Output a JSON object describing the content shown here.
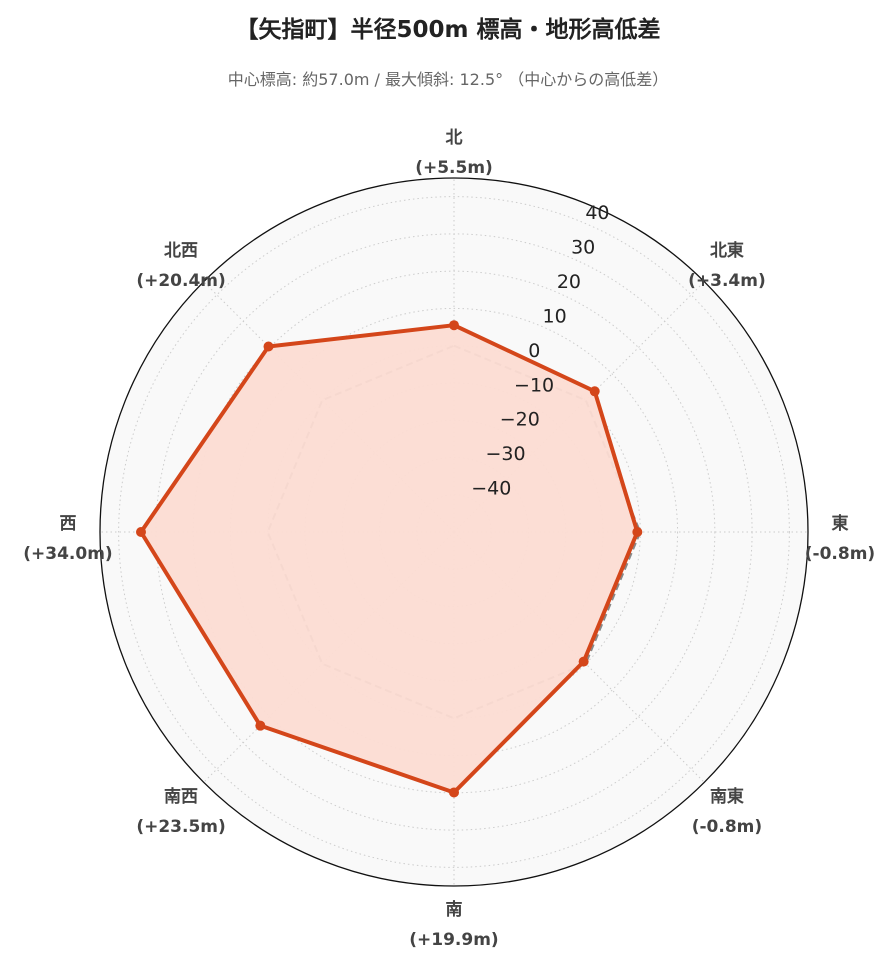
{
  "title": "【矢指町】半径500m 標高・地形高低差",
  "subtitle": "中心標高: 約57.0m / 最大傾斜: 12.5° （中心からの高低差）",
  "chart_data": {
    "type": "radar",
    "categories": [
      "北",
      "北東",
      "東",
      "南東",
      "南",
      "南西",
      "西",
      "北西"
    ],
    "category_values": [
      "(+5.5m)",
      "(+3.4m)",
      "(-0.8m)",
      "(-0.8m)",
      "(+19.9m)",
      "(+23.5m)",
      "(+34.0m)",
      "(+20.4m)"
    ],
    "series": [
      {
        "values": [
          5.5,
          3.4,
          -0.8,
          -0.8,
          19.9,
          23.5,
          34.0,
          20.4
        ],
        "color": "#d4461a",
        "fill": "#fcdcd3"
      },
      {
        "values": [
          0,
          0,
          0,
          0,
          0,
          0,
          0,
          0
        ],
        "color": "#888888",
        "style": "dashed"
      }
    ],
    "r_ticks": [
      "−40",
      "−30",
      "−20",
      "−10",
      "0",
      "10",
      "20",
      "30",
      "40"
    ],
    "r_tick_values": [
      -40,
      -30,
      -20,
      -10,
      0,
      10,
      20,
      30,
      40
    ],
    "rlim": [
      -50,
      45
    ],
    "grid": true,
    "direction": "clockwise, north at top"
  }
}
